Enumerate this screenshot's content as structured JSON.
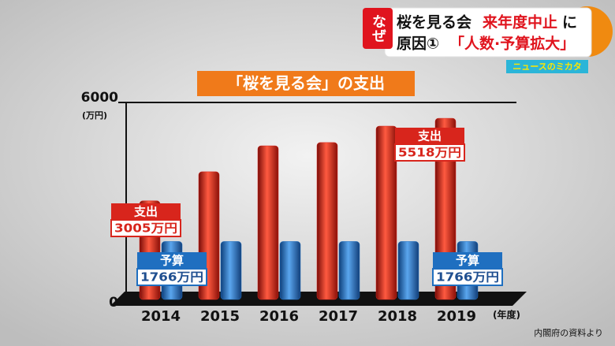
{
  "header": {
    "tag": "なぜ",
    "line1a": "桜を見る会",
    "line1b": "来年度中止",
    "line1c": "に",
    "line2a": "原因①",
    "line2b": "「人数·予算拡大」",
    "corner": "ニュースのミカタ"
  },
  "chart_data": {
    "type": "bar",
    "title": "「桜を見る会」の支出",
    "y_unit": "(万円)",
    "x_unit": "(年度)",
    "source": "内閣府の資料より",
    "categories": [
      "2014",
      "2015",
      "2016",
      "2017",
      "2018",
      "2019"
    ],
    "series": [
      {
        "name": "支出",
        "color": "#d8251c",
        "values": [
          3005,
          3890,
          4680,
          4780,
          5280,
          5518
        ],
        "value_labels": [
          "3005万円",
          null,
          null,
          null,
          null,
          "5518万円"
        ]
      },
      {
        "name": "予算",
        "color": "#1f6fc0",
        "values": [
          1766,
          1766,
          1766,
          1766,
          1766,
          1766
        ],
        "value_labels": [
          "1766万円",
          null,
          null,
          null,
          null,
          "1766万円"
        ]
      }
    ],
    "ylim": [
      0,
      6000
    ],
    "yticks": [
      0,
      6000
    ]
  }
}
